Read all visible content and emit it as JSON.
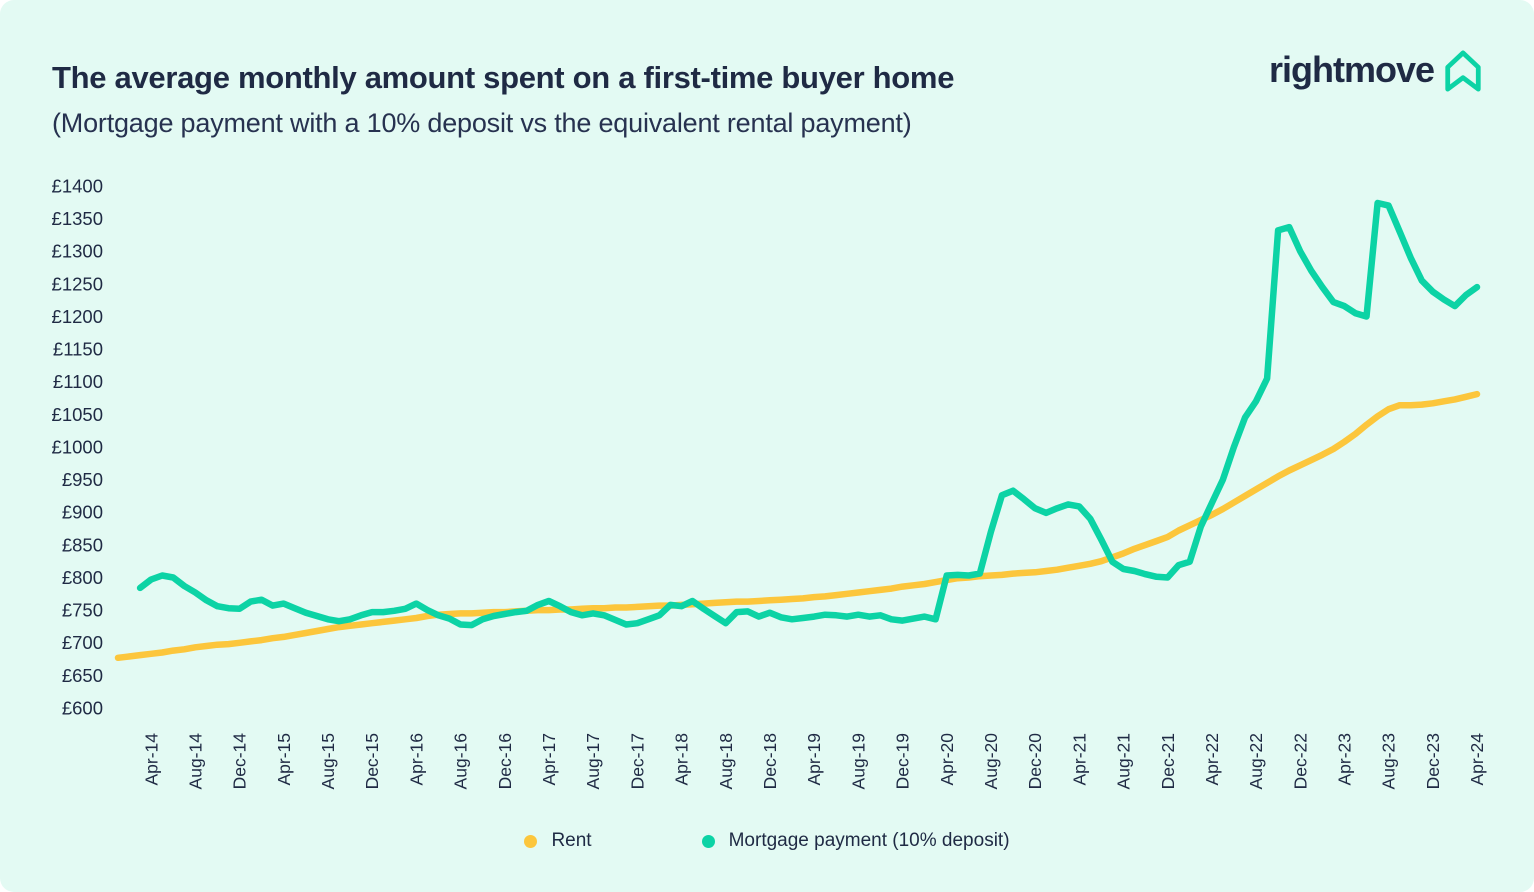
{
  "header": {
    "title": "The average monthly amount spent on a first-time buyer home",
    "subtitle": "(Mortgage payment with a 10% deposit vs the equivalent rental payment)"
  },
  "logo": {
    "text": "rightmove"
  },
  "colors": {
    "background": "#e3faf3",
    "rent": "#fcc63c",
    "mortgage": "#0cd3a5",
    "text": "#1f2a44"
  },
  "legend": {
    "items": [
      {
        "label": "Rent",
        "color": "#fcc63c"
      },
      {
        "label": "Mortgage payment (10% deposit)",
        "color": "#0cd3a5"
      }
    ]
  },
  "chart_data": {
    "type": "line",
    "title": "The average monthly amount spent on a first-time buyer home",
    "subtitle": "(Mortgage payment with a 10% deposit vs the equivalent rental payment)",
    "currency": "£",
    "ylim": [
      600,
      1400
    ],
    "grid": false,
    "legend_position": "bottom",
    "y_tick_values": [
      1400,
      1350,
      1300,
      1250,
      1200,
      1150,
      1100,
      1050,
      1000,
      950,
      900,
      850,
      800,
      750,
      700,
      650,
      600
    ],
    "y_tick_labels": [
      "£1400",
      "£1350",
      "£1300",
      "£1250",
      "£1200",
      "£1150",
      "£1100",
      "£1050",
      "£1000",
      "£950",
      "£900",
      "£850",
      "£800",
      "£750",
      "£700",
      "£650",
      "£600"
    ],
    "x_tick_labels": [
      "Apr-14",
      "Aug-14",
      "Dec-14",
      "Apr-15",
      "Aug-15",
      "Dec-15",
      "Apr-16",
      "Aug-16",
      "Dec-16",
      "Apr-17",
      "Aug-17",
      "Dec-17",
      "Apr-18",
      "Aug-18",
      "Dec-18",
      "Apr-19",
      "Aug-19",
      "Dec-19",
      "Apr-20",
      "Aug-20",
      "Dec-20",
      "Apr-21",
      "Aug-21",
      "Dec-21",
      "Apr-22",
      "Aug-22",
      "Dec-22",
      "Apr-23",
      "Aug-23",
      "Dec-23",
      "Apr-24"
    ],
    "x_months_total": 124,
    "tick_start_index": 3,
    "tick_every": 4,
    "series": [
      {
        "name": "Rent",
        "color": "#fcc63c",
        "start_month_offset": 0,
        "values": [
          677,
          679,
          681,
          683,
          685,
          688,
          690,
          693,
          695,
          697,
          698,
          700,
          702,
          704,
          707,
          709,
          712,
          715,
          718,
          721,
          724,
          726,
          728,
          730,
          732,
          734,
          736,
          738,
          741,
          743,
          744,
          745,
          745,
          746,
          747,
          747,
          748,
          749,
          750,
          750,
          751,
          751,
          752,
          753,
          753,
          754,
          754,
          755,
          756,
          757,
          757,
          758,
          759,
          760,
          761,
          762,
          763,
          763,
          764,
          765,
          766,
          767,
          768,
          770,
          771,
          773,
          775,
          777,
          779,
          781,
          783,
          786,
          788,
          790,
          793,
          796,
          799,
          800,
          802,
          803,
          804,
          806,
          807,
          808,
          810,
          812,
          815,
          818,
          821,
          825,
          831,
          837,
          844,
          850,
          856,
          862,
          872,
          880,
          888,
          896,
          905,
          915,
          925,
          935,
          945,
          955,
          964,
          972,
          980,
          988,
          997,
          1008,
          1020,
          1034,
          1047,
          1058,
          1064,
          1064,
          1065,
          1067,
          1070,
          1073,
          1077,
          1081
        ]
      },
      {
        "name": "Mortgage payment (10% deposit)",
        "color": "#0cd3a5",
        "start_month_offset": 2,
        "values": [
          784,
          797,
          803,
          800,
          787,
          777,
          765,
          756,
          753,
          752,
          763,
          766,
          757,
          760,
          753,
          746,
          741,
          736,
          733,
          736,
          742,
          747,
          747,
          749,
          752,
          760,
          750,
          742,
          737,
          728,
          727,
          736,
          741,
          744,
          747,
          749,
          758,
          764,
          756,
          747,
          742,
          745,
          742,
          735,
          728,
          730,
          736,
          742,
          758,
          756,
          764,
          752,
          741,
          730,
          747,
          748,
          740,
          746,
          739,
          736,
          738,
          740,
          743,
          742,
          740,
          743,
          740,
          742,
          736,
          734,
          737,
          740,
          736,
          803,
          804,
          803,
          806,
          870,
          926,
          933,
          920,
          906,
          899,
          906,
          912,
          909,
          890,
          858,
          824,
          813,
          810,
          805,
          801,
          800,
          819,
          824,
          878,
          914,
          950,
          1000,
          1045,
          1070,
          1105,
          1332,
          1337,
          1300,
          1270,
          1245,
          1222,
          1216,
          1205,
          1200,
          1374,
          1370,
          1330,
          1290,
          1255,
          1238,
          1226,
          1216,
          1233,
          1245
        ]
      }
    ]
  }
}
